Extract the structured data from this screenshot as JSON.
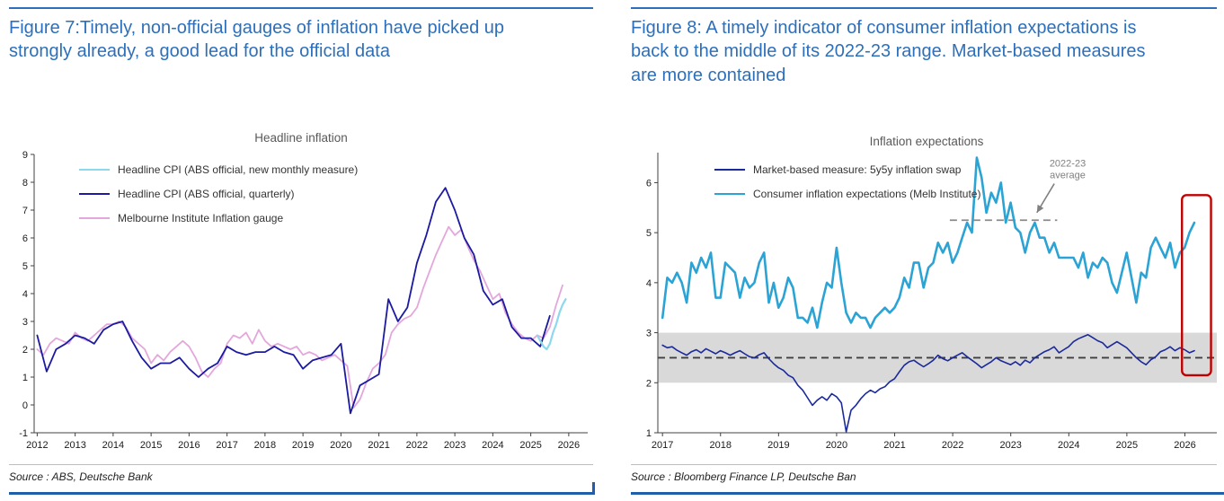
{
  "colors": {
    "title_blue": "#2d6fba",
    "bottom_rule_blue": "#1f5fa8",
    "axis": "#404040"
  },
  "figure7": {
    "title": "Figure 7:Timely, non-official gauges of inflation have picked up strongly already, a good lead for the official data",
    "source": "Source : ABS, Deutsche Bank"
  },
  "figure8": {
    "title": "Figure 8: A timely indicator of consumer inflation expectations is back to the middle of its 2022-23 range. Market-based measures are more contained",
    "source": "Source : Bloomberg Finance LP, Deutsche Ban"
  },
  "chart_data": [
    {
      "type": "line",
      "title": "Headline inflation",
      "xlim": [
        2011.92,
        2026.5
      ],
      "ylim": [
        -1,
        9
      ],
      "yticks": [
        -1,
        0,
        1,
        2,
        3,
        4,
        5,
        6,
        7,
        8,
        9
      ],
      "xticks": [
        2012,
        2013,
        2014,
        2015,
        2016,
        2017,
        2018,
        2019,
        2020,
        2021,
        2022,
        2023,
        2024,
        2025,
        2026
      ],
      "grid": false,
      "legend_position": "top-left",
      "margins": {
        "l": 28,
        "r": 6,
        "t": 6,
        "b": 26
      },
      "series": [
        {
          "name": "Headline CPI (ABS official, new monthly measure)",
          "color": "#8ed8ee",
          "width": 2.2,
          "x_start": 2025.17,
          "x_step": 0.0833,
          "y": [
            2.5,
            2.3,
            2.1,
            2.0,
            2.2,
            2.6,
            2.9,
            3.3,
            3.6,
            3.8
          ]
        },
        {
          "name": "Headline CPI (ABS official, quarterly)",
          "color": "#1b1aa0",
          "width": 1.8,
          "x_start": 2012,
          "x_step": 0.25,
          "y": [
            2.5,
            1.2,
            2.0,
            2.2,
            2.5,
            2.4,
            2.2,
            2.7,
            2.9,
            3.0,
            2.3,
            1.7,
            1.3,
            1.5,
            1.5,
            1.7,
            1.3,
            1.0,
            1.3,
            1.5,
            2.1,
            1.9,
            1.8,
            1.9,
            1.9,
            2.1,
            1.9,
            1.8,
            1.3,
            1.6,
            1.7,
            1.8,
            2.2,
            -0.3,
            0.7,
            0.9,
            1.1,
            3.8,
            3.0,
            3.5,
            5.1,
            6.1,
            7.3,
            7.8,
            7.0,
            6.0,
            5.4,
            4.1,
            3.6,
            3.8,
            2.8,
            2.4,
            2.4,
            2.1,
            3.2
          ]
        },
        {
          "name": "Melbourne Institute Inflation gauge",
          "color": "#e3a7dc",
          "width": 1.8,
          "x_start": 2012,
          "x_step": 0.1667,
          "y": [
            2.0,
            1.8,
            2.2,
            2.4,
            2.3,
            2.2,
            2.6,
            2.4,
            2.3,
            2.5,
            2.7,
            2.9,
            2.9,
            3.0,
            2.8,
            2.4,
            2.2,
            2.0,
            1.5,
            1.8,
            1.6,
            1.9,
            2.1,
            2.3,
            2.1,
            1.7,
            1.2,
            1.0,
            1.3,
            1.5,
            2.2,
            2.5,
            2.4,
            2.6,
            2.2,
            2.7,
            2.3,
            2.1,
            2.2,
            2.1,
            2.0,
            2.1,
            1.8,
            1.9,
            1.8,
            1.6,
            1.7,
            1.8,
            1.6,
            1.4,
            -0.1,
            0.2,
            0.8,
            1.3,
            1.5,
            1.8,
            2.6,
            2.9,
            3.1,
            3.2,
            3.5,
            4.2,
            4.8,
            5.4,
            5.9,
            6.4,
            6.1,
            6.3,
            5.7,
            5.2,
            4.8,
            4.3,
            3.8,
            4.0,
            3.3,
            2.9,
            2.6,
            2.4,
            2.3,
            2.5,
            2.4,
            2.8,
            3.6,
            4.3
          ]
        }
      ]
    },
    {
      "type": "line",
      "title": "Inflation expectations",
      "xlim": [
        2016.92,
        2026.55
      ],
      "ylim": [
        1,
        6.6
      ],
      "yticks": [
        1,
        2,
        3,
        4,
        5,
        6
      ],
      "xticks": [
        2017,
        2018,
        2019,
        2020,
        2021,
        2022,
        2023,
        2024,
        2025,
        2026
      ],
      "grid": false,
      "legend_position": "top-left",
      "margins": {
        "l": 30,
        "r": 6,
        "t": 4,
        "b": 26
      },
      "band": {
        "from": 2,
        "to": 3,
        "color": "#d9d9d9"
      },
      "ref_lines": [
        {
          "y": 2.5,
          "x1": 2016.92,
          "x2": 2026.55,
          "color": "#3f3f3f",
          "dash": "8 5",
          "width": 1.8
        },
        {
          "y": 5.25,
          "x1": 2021.95,
          "x2": 2023.8,
          "color": "#8a8a8a",
          "dash": "8 5",
          "width": 1.8
        }
      ],
      "annotation": {
        "lines": [
          "2022-23",
          "average"
        ],
        "x": 2023.98,
        "y": 6.32,
        "color": "#808080",
        "arrow": {
          "x1": 2023.75,
          "y1": 5.98,
          "x2": 2023.45,
          "y2": 5.4
        }
      },
      "highlight_box": {
        "x1": 2025.95,
        "x2": 2026.45,
        "y1": 2.15,
        "y2": 5.75,
        "color": "#c00000"
      },
      "series": [
        {
          "name": "Market-based measure: 5y5y inflation swap",
          "color": "#1b2a9b",
          "width": 1.6,
          "x_start": 2017,
          "x_step": 0.0833,
          "y": [
            2.75,
            2.7,
            2.72,
            2.65,
            2.6,
            2.55,
            2.62,
            2.66,
            2.6,
            2.68,
            2.63,
            2.58,
            2.64,
            2.6,
            2.55,
            2.6,
            2.64,
            2.58,
            2.52,
            2.5,
            2.56,
            2.6,
            2.48,
            2.38,
            2.3,
            2.25,
            2.15,
            2.1,
            1.95,
            1.85,
            1.7,
            1.55,
            1.65,
            1.72,
            1.65,
            1.78,
            1.72,
            1.6,
            1.02,
            1.45,
            1.55,
            1.68,
            1.78,
            1.85,
            1.8,
            1.88,
            1.92,
            2.02,
            2.08,
            2.22,
            2.35,
            2.42,
            2.45,
            2.38,
            2.32,
            2.38,
            2.45,
            2.55,
            2.48,
            2.44,
            2.5,
            2.55,
            2.6,
            2.52,
            2.45,
            2.38,
            2.3,
            2.36,
            2.42,
            2.5,
            2.44,
            2.4,
            2.36,
            2.42,
            2.35,
            2.45,
            2.4,
            2.5,
            2.56,
            2.62,
            2.66,
            2.72,
            2.6,
            2.66,
            2.72,
            2.82,
            2.88,
            2.92,
            2.96,
            2.9,
            2.84,
            2.8,
            2.7,
            2.76,
            2.82,
            2.76,
            2.7,
            2.6,
            2.5,
            2.42,
            2.36,
            2.46,
            2.52,
            2.62,
            2.66,
            2.72,
            2.64,
            2.7,
            2.66,
            2.6,
            2.64
          ]
        },
        {
          "name": "Consumer inflation expectations (Melb Institute)",
          "color": "#2ba3d4",
          "width": 2.6,
          "x_start": 2017,
          "x_step": 0.0833,
          "y": [
            3.3,
            4.1,
            4.0,
            4.2,
            4.0,
            3.6,
            4.4,
            4.2,
            4.5,
            4.3,
            4.6,
            3.7,
            3.7,
            4.4,
            4.3,
            4.2,
            3.7,
            4.1,
            3.9,
            4.0,
            4.4,
            4.6,
            3.6,
            4.0,
            3.5,
            3.7,
            4.1,
            3.9,
            3.3,
            3.3,
            3.2,
            3.5,
            3.1,
            3.6,
            4.0,
            3.9,
            4.7,
            4.0,
            3.4,
            3.2,
            3.4,
            3.3,
            3.3,
            3.1,
            3.3,
            3.4,
            3.5,
            3.4,
            3.5,
            3.7,
            4.1,
            3.9,
            4.4,
            4.4,
            3.9,
            4.3,
            4.4,
            4.8,
            4.6,
            4.8,
            4.4,
            4.6,
            4.9,
            5.2,
            5.0,
            6.5,
            6.1,
            5.4,
            5.8,
            5.6,
            6.0,
            5.2,
            5.6,
            5.1,
            5.0,
            4.6,
            5.0,
            5.2,
            4.9,
            4.9,
            4.6,
            4.8,
            4.5,
            4.5,
            4.5,
            4.5,
            4.3,
            4.6,
            4.1,
            4.4,
            4.3,
            4.5,
            4.4,
            4.0,
            3.8,
            4.2,
            4.6,
            4.1,
            3.6,
            4.2,
            4.1,
            4.7,
            4.9,
            4.7,
            4.5,
            4.8,
            4.3,
            4.6,
            4.7,
            5.0,
            5.2
          ]
        }
      ]
    }
  ]
}
